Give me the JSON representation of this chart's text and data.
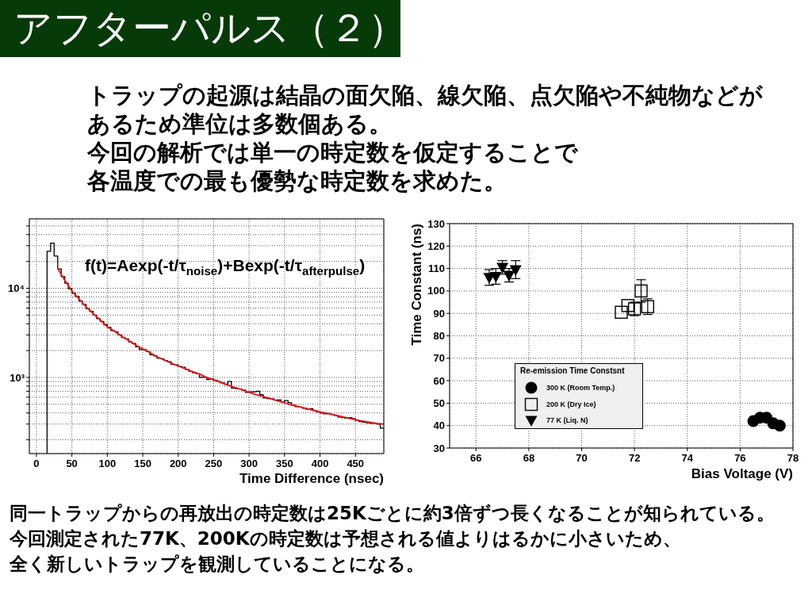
{
  "chart_data": [
    {
      "type": "other",
      "title": "アフターパルス（２）",
      "annotations": [
        "トラップの起源は結晶の面欠陥、線欠陥、点欠陥や不純物などが",
        "あるため準位は多数個ある。",
        "今回の解析では単一の時定数を仮定することで",
        "各温度での最も優勢な時定数を求めた。"
      ]
    },
    {
      "type": "histogram",
      "xlabel": "Time Difference (nsec)",
      "annotations": [
        "f(t)=Aexp(-t/τ$_{noise}$)+Bexp(-t/τ$_{afterpulse}$)"
      ],
      "color": "#000000",
      "bins": [
        15,
        20,
        25,
        30,
        35,
        40,
        45,
        50,
        55,
        60,
        65,
        70,
        75,
        80,
        85,
        90,
        95,
        100,
        105,
        110,
        115,
        120,
        125,
        130,
        135,
        140,
        145,
        150,
        155,
        160,
        165,
        170,
        175,
        180,
        185,
        190,
        195,
        200,
        205,
        210,
        215,
        220,
        225,
        230,
        235,
        240,
        245,
        250,
        255,
        260,
        265,
        270,
        275,
        280,
        285,
        290,
        295,
        300,
        305,
        310,
        315,
        320,
        325,
        330,
        335,
        340,
        345,
        350,
        355,
        360,
        365,
        370,
        375,
        380,
        385,
        390,
        395,
        400,
        405,
        410,
        415,
        420,
        425,
        430,
        435,
        440,
        445,
        450,
        455,
        460,
        465,
        470,
        475,
        480,
        485,
        490
      ],
      "values": [
        26000,
        32000,
        23000,
        16500,
        13500,
        11400,
        9900,
        8800,
        8100,
        7200,
        6600,
        5900,
        5500,
        5000,
        4550,
        4250,
        3900,
        3650,
        3350,
        3250,
        3000,
        2800,
        2700,
        2500,
        2400,
        2200,
        2050,
        2050,
        1950,
        1800,
        1750,
        1650,
        1620,
        1550,
        1500,
        1400,
        1380,
        1330,
        1300,
        1230,
        1170,
        1130,
        1100,
        1000,
        1000,
        950,
        960,
        930,
        900,
        870,
        840,
        900,
        760,
        750,
        740,
        720,
        680,
        690,
        690,
        700,
        640,
        590,
        580,
        575,
        560,
        560,
        530,
        550,
        520,
        490,
        470,
        465,
        450,
        440,
        445,
        425,
        410,
        400,
        390,
        395,
        385,
        375,
        360,
        355,
        350,
        355,
        345,
        330,
        320,
        315,
        310,
        305,
        305,
        300,
        270
      ],
      "series": [
        {
          "type": "line",
          "color": "#e41e26",
          "x": [
            30,
            40,
            50,
            60,
            70,
            80,
            90,
            100,
            110,
            120,
            130,
            140,
            150,
            160,
            170,
            180,
            190,
            200,
            210,
            220,
            230,
            240,
            250,
            260,
            270,
            280,
            290,
            300,
            310,
            320,
            330,
            340,
            350,
            360,
            370,
            380,
            390,
            400,
            410,
            420,
            430,
            440,
            450,
            460,
            470,
            480,
            490
          ],
          "values": [
            16700,
            12300,
            9300,
            7600,
            6200,
            5200,
            4400,
            3700,
            3300,
            2900,
            2600,
            2310,
            2090,
            1900,
            1700,
            1570,
            1450,
            1340,
            1250,
            1160,
            1090,
            1000,
            940,
            880,
            820,
            770,
            730,
            680,
            640,
            610,
            580,
            545,
            520,
            490,
            470,
            450,
            430,
            410,
            395,
            380,
            365,
            350,
            335,
            325,
            315,
            305,
            300
          ]
        }
      ],
      "xlim": [
        -10,
        490
      ],
      "xticks": [
        0,
        50,
        100,
        150,
        200,
        250,
        300,
        350,
        400,
        450
      ],
      "ylim": [
        140,
        60000
      ],
      "yticks": [
        {
          "value": 200,
          "label": null
        },
        {
          "value": 300,
          "label": null
        },
        {
          "value": 400,
          "label": null
        },
        {
          "value": 500,
          "label": null
        },
        {
          "value": 600,
          "label": null
        },
        {
          "value": 700,
          "label": null
        },
        {
          "value": 800,
          "label": null
        },
        {
          "value": 900,
          "label": null
        },
        {
          "value": 1000,
          "label": "10³"
        },
        {
          "value": 2000,
          "label": null
        },
        {
          "value": 3000,
          "label": null
        },
        {
          "value": 4000,
          "label": null
        },
        {
          "value": 5000,
          "label": null
        },
        {
          "value": 6000,
          "label": null
        },
        {
          "value": 7000,
          "label": null
        },
        {
          "value": 8000,
          "label": null
        },
        {
          "value": 9000,
          "label": null
        },
        {
          "value": 10000,
          "label": "10⁴"
        },
        {
          "value": 20000,
          "label": null
        },
        {
          "value": 30000,
          "label": null
        },
        {
          "value": 40000,
          "label": null
        },
        {
          "value": 50000,
          "label": null
        }
      ],
      "log": "y",
      "grid": true
    },
    {
      "type": "scatter",
      "xlabel": "Bias Voltage (V)",
      "ylabel": "Time Constant (ns)",
      "legend_title": "Re-emission Time Constsnt",
      "legend": "bottom left",
      "grid": true,
      "xlim": [
        65,
        78
      ],
      "xticks": [
        66,
        68,
        70,
        72,
        74,
        76,
        78
      ],
      "ylim": [
        30,
        130
      ],
      "yticks": [
        30,
        40,
        50,
        60,
        70,
        80,
        90,
        100,
        110,
        120,
        130
      ],
      "series": [
        {
          "name": "300 K (Room Temp.)",
          "color": "#000000",
          "marker": "circle",
          "x": [
            76.5,
            76.75,
            77,
            77.25,
            77.5
          ],
          "values": [
            42,
            43.5,
            43.5,
            41,
            40
          ]
        },
        {
          "name": "200 K (Dry Ice)",
          "color": "#000000",
          "marker": "square",
          "x": [
            71.5,
            71.75,
            72,
            72.25,
            72.5
          ],
          "values": [
            90.5,
            93.5,
            92,
            100,
            93
          ],
          "errors": [
            null,
            null,
            3,
            5,
            3.5
          ]
        },
        {
          "name": "77 K (Liq. N)",
          "color": "#000000",
          "marker": "triangle",
          "x": [
            66.5,
            66.75,
            67,
            67.25,
            67.5
          ],
          "values": [
            106,
            106.5,
            110.5,
            107,
            109.5
          ],
          "errors": [
            3.5,
            3.5,
            3,
            3,
            4
          ]
        }
      ]
    },
    {
      "type": "other",
      "annotations": [
        "同一トラップからの再放出の時定数は25Kごとに約3倍ずつ長くなることが知られている。",
        "今回測定された77K、200Kの時定数は予想される値よりはるかに小さいため、",
        "全く新しいトラップを観測していることになる。"
      ]
    }
  ]
}
